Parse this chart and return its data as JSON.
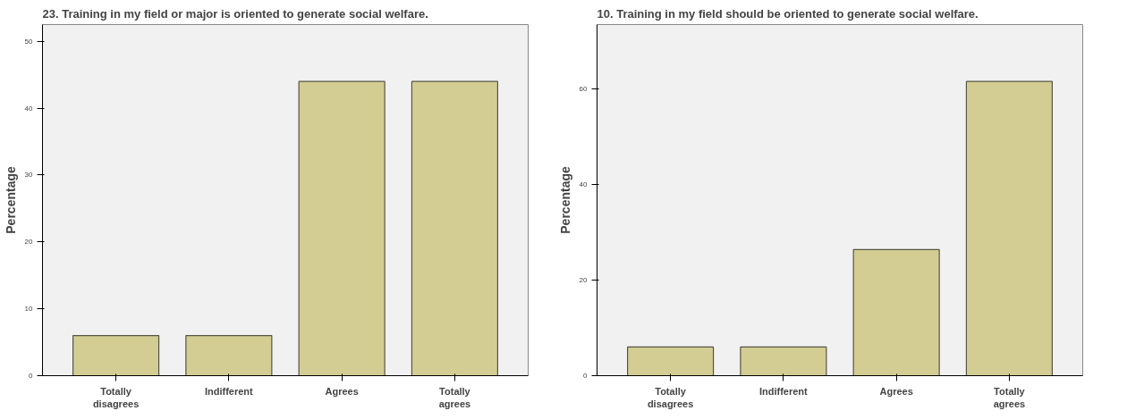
{
  "chart_data": [
    {
      "type": "bar",
      "title": "23. Training in my field or major is oriented to generate social welfare.",
      "ylabel": "Percentage",
      "categories": [
        "Totally\ndisagrees",
        "Indifferent",
        "Agrees",
        "Totally\nagrees"
      ],
      "values": [
        6,
        6,
        44,
        44
      ],
      "color": "#d3cd93",
      "ylim": [
        0,
        52.5
      ],
      "yticks": [
        0,
        10,
        20,
        30,
        40,
        50
      ],
      "grid": false
    },
    {
      "type": "bar",
      "title": "10. Training in my field should be oriented to generate social welfare.",
      "ylabel": "Percentage",
      "categories": [
        "Totally\ndisagrees",
        "Indifferent",
        "Agrees",
        "Totally\nagrees"
      ],
      "values": [
        6,
        6,
        26.4,
        61.6
      ],
      "color": "#d3cd93",
      "ylim": [
        0,
        73.5
      ],
      "yticks": [
        0,
        20,
        40,
        60
      ],
      "grid": false
    }
  ]
}
